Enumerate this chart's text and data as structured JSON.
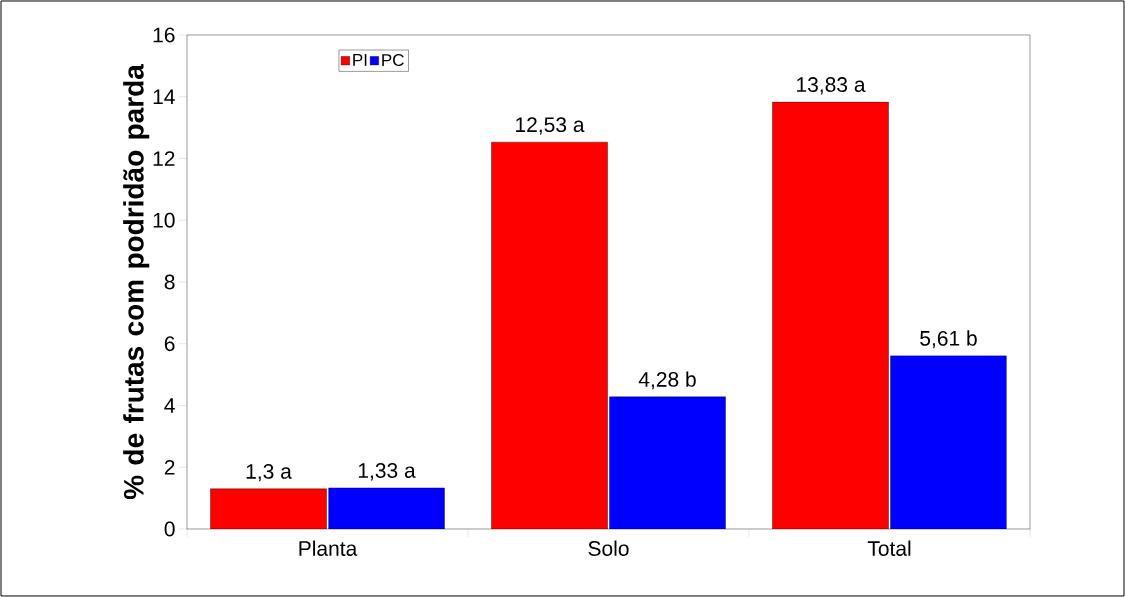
{
  "chart_data": {
    "type": "bar",
    "ylabel": "% de frutas com podridão parda",
    "categories": [
      "Planta",
      "Solo",
      "Total"
    ],
    "series": [
      {
        "name": "PI",
        "color": "#ff0000",
        "values": [
          1.3,
          12.53,
          13.83
        ],
        "value_labels": [
          "1,3 a",
          "12,53 a",
          "13,83 a"
        ]
      },
      {
        "name": "PC",
        "color": "#0000ff",
        "values": [
          1.33,
          4.28,
          5.61
        ],
        "value_labels": [
          "1,33 a",
          "4,28 b",
          "5,61 b"
        ]
      }
    ],
    "ylim": [
      0,
      16
    ],
    "yticks": [
      0,
      2,
      4,
      6,
      8,
      10,
      12,
      14,
      16
    ],
    "grid": false,
    "legend": "top left"
  }
}
